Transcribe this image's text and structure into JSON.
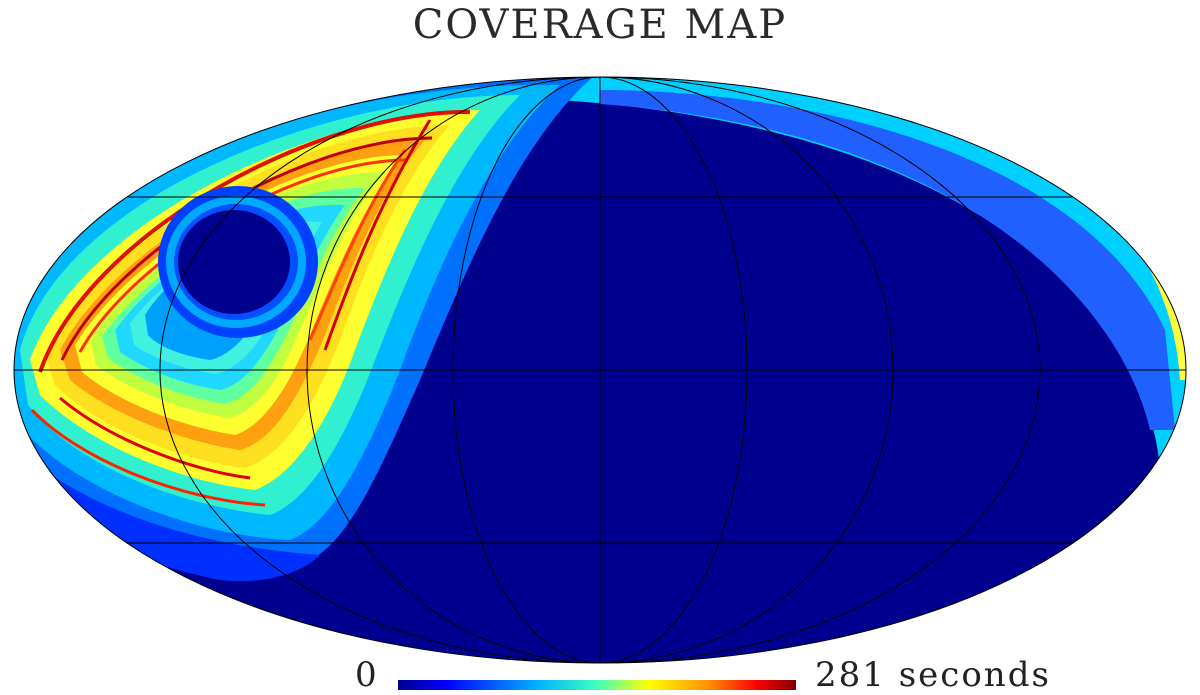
{
  "title": "COVERAGE MAP",
  "colorbar": {
    "min_label": "0",
    "max_value": "281",
    "unit": "seconds",
    "colormap": "jet",
    "colors": [
      "#00008f",
      "#0000ff",
      "#00b0ff",
      "#3fffbf",
      "#ffff00",
      "#ff9000",
      "#ff0000",
      "#800000"
    ]
  },
  "map": {
    "projection": "mollweide",
    "background_color": "#00008f",
    "graticule": {
      "longitudes": [
        -150,
        -120,
        -60,
        0,
        60,
        120,
        150
      ],
      "latitudes": [
        -60,
        0,
        60
      ]
    }
  }
}
